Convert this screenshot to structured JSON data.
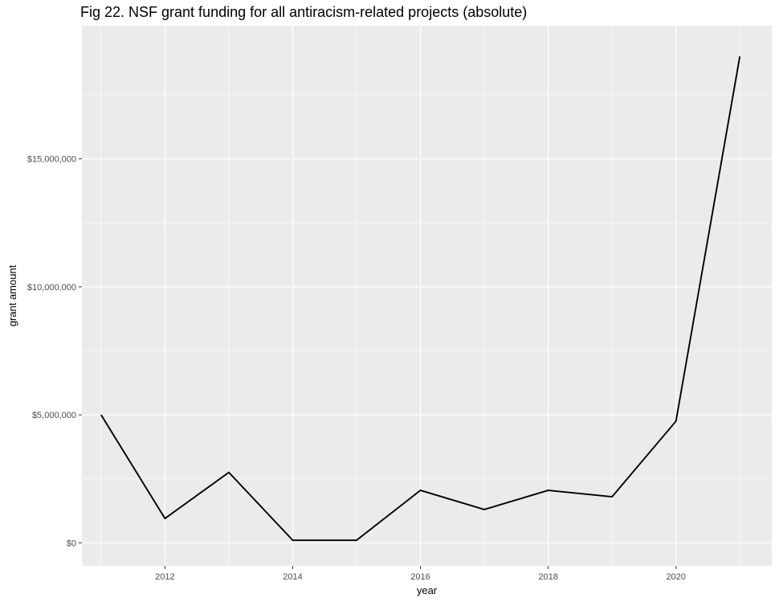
{
  "chart_data": {
    "type": "line",
    "title": "Fig 22. NSF grant funding for all antiracism-related projects (absolute)",
    "xlabel": "year",
    "ylabel": "grant amount",
    "x": [
      2011,
      2012,
      2013,
      2014,
      2015,
      2016,
      2017,
      2018,
      2019,
      2020,
      2021
    ],
    "series": [
      {
        "values": [
          5000000,
          950000,
          2750000,
          100000,
          100000,
          2050000,
          1300000,
          2050000,
          1800000,
          4750000,
          19000000
        ]
      }
    ],
    "xlim": [
      2010.7,
      2021.5
    ],
    "ylim": [
      -900000,
      20200000
    ],
    "x_ticks": [
      2012,
      2014,
      2016,
      2018,
      2020
    ],
    "x_tick_labels": [
      "2012",
      "2014",
      "2016",
      "2018",
      "2020"
    ],
    "y_ticks": [
      0,
      5000000,
      10000000,
      15000000
    ],
    "y_tick_labels": [
      "$0",
      "$5,000,000",
      "$10,000,000",
      "$15,000,000"
    ],
    "grid": true,
    "legend": "none",
    "colors": {
      "panel": "#ebebeb",
      "grid": "#ffffff",
      "line": "#000000",
      "tick_text": "#4d4d4d"
    }
  }
}
